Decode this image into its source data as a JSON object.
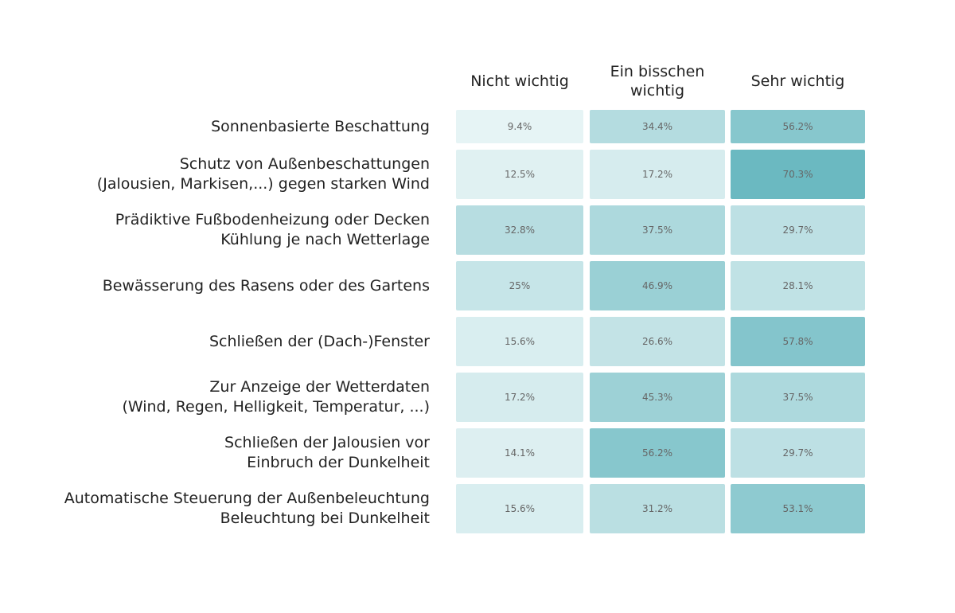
{
  "chart_data": {
    "type": "heatmap",
    "columns": [
      "Nicht wichtig",
      "Ein bisschen\nwichtig",
      "Sehr wichtig"
    ],
    "rows": [
      "Sonnenbasierte Beschattung",
      "Schutz von Außenbeschattungen\n(Jalousien, Markisen,...) gegen starken Wind",
      "Prädiktive Fußbodenheizung oder Decken\nKühlung je nach Wetterlage",
      "Bewässerung des Rasens oder des Gartens",
      "Schließen der (Dach-)Fenster",
      "Zur Anzeige der Wetterdaten\n(Wind, Regen, Helligkeit, Temperatur, ...)",
      "Schließen der Jalousien vor\nEinbruch der Dunkelheit",
      "Automatische Steuerung der Außenbeleuchtung\nBeleuchtung bei Dunkelheit"
    ],
    "values": [
      [
        9.4,
        34.4,
        56.2
      ],
      [
        12.5,
        17.2,
        70.3
      ],
      [
        32.8,
        37.5,
        29.7
      ],
      [
        25,
        46.9,
        28.1
      ],
      [
        15.6,
        26.6,
        57.8
      ],
      [
        17.2,
        45.3,
        37.5
      ],
      [
        14.1,
        56.2,
        29.7
      ],
      [
        15.6,
        31.2,
        53.1
      ]
    ],
    "labels": [
      [
        "9.4%",
        "34.4%",
        "56.2%"
      ],
      [
        "12.5%",
        "17.2%",
        "70.3%"
      ],
      [
        "32.8%",
        "37.5%",
        "29.7%"
      ],
      [
        "25%",
        "46.9%",
        "28.1%"
      ],
      [
        "15.6%",
        "26.6%",
        "57.8%"
      ],
      [
        "17.2%",
        "45.3%",
        "37.5%"
      ],
      [
        "14.1%",
        "56.2%",
        "29.7%"
      ],
      [
        "15.6%",
        "31.2%",
        "53.1%"
      ]
    ],
    "unit": "%",
    "color_low": "#e6f4f5",
    "color_high": "#6bb9c1"
  }
}
